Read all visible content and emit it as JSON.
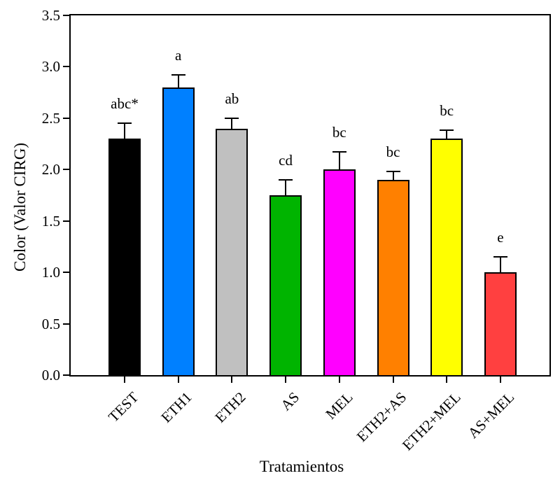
{
  "chart_data": {
    "type": "bar",
    "title": "",
    "xlabel": "Tratamientos",
    "ylabel": "Color (Valor CIRG)",
    "ylim": [
      0,
      3.5
    ],
    "ytick_labels": [
      "0.0",
      "0.5",
      "1.0",
      "1.5",
      "2.0",
      "2.5",
      "3.0",
      "3.5"
    ],
    "ytick_values": [
      0,
      0.5,
      1.0,
      1.5,
      2.0,
      2.5,
      3.0,
      3.5
    ],
    "categories": [
      "TEST",
      "ETH1",
      "ETH2",
      "AS",
      "MEL",
      "ETH2+AS",
      "ETH2+MEL",
      "AS+MEL"
    ],
    "values": [
      2.3,
      2.8,
      2.4,
      1.75,
      2.0,
      1.9,
      2.3,
      1.0
    ],
    "errors_plus": [
      0.15,
      0.12,
      0.1,
      0.15,
      0.17,
      0.08,
      0.08,
      0.15
    ],
    "sig_labels": [
      "abc*",
      "a",
      "ab",
      "cd",
      "bc",
      "bc",
      "bc",
      "e"
    ],
    "bar_colors": [
      "#000000",
      "#0080ff",
      "#c0c0c0",
      "#00b400",
      "#ff00ff",
      "#ff8000",
      "#ffff00",
      "#ff4040"
    ],
    "grid": false,
    "legend": false,
    "frame": "full-box",
    "error_bar_direction": "up-only"
  }
}
